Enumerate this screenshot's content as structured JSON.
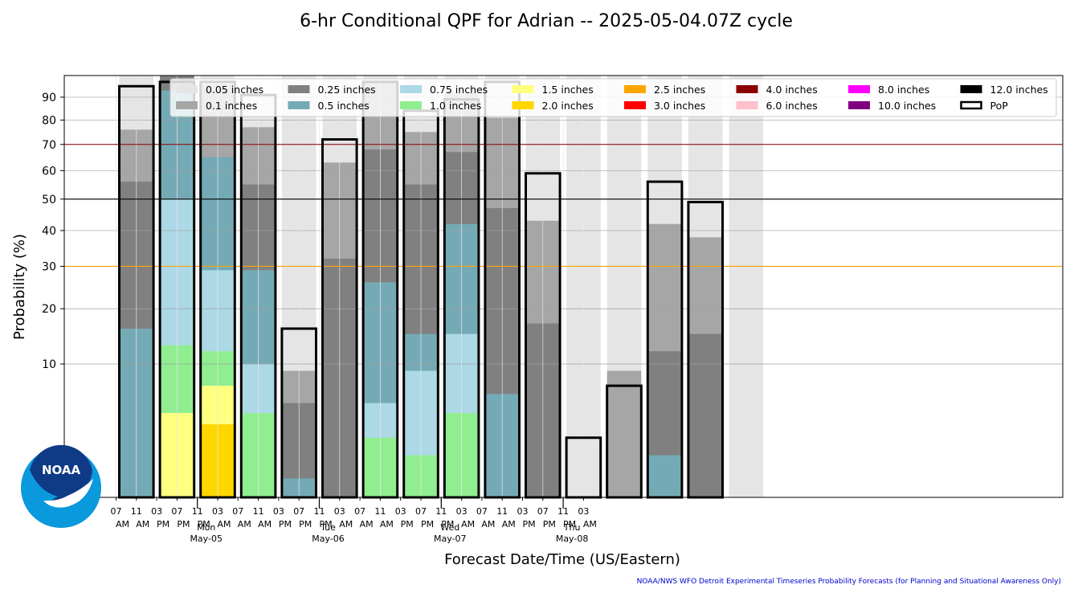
{
  "chart_data": {
    "type": "bar",
    "title": "6-hr Conditional QPF for Adrian -- 2025-05-04.07Z cycle",
    "xlabel": "Forecast Date/Time (US/Eastern)",
    "ylabel": "Probability (%)",
    "y_scale": "sqrt",
    "ylim": [
      0,
      100
    ],
    "yticks": [
      10,
      20,
      30,
      40,
      50,
      60,
      70,
      80,
      90
    ],
    "grid": true,
    "legend_position": "top",
    "reference_lines": [
      {
        "value": 70,
        "color": "#8b0000"
      },
      {
        "value": 50,
        "color": "#000000"
      },
      {
        "value": 30,
        "color": "#ffa500"
      }
    ],
    "tick_labels": [
      {
        "top": "07",
        "bottom": "AM"
      },
      {
        "top": "11",
        "bottom": "AM"
      },
      {
        "top": "03",
        "bottom": "PM"
      },
      {
        "top": "07",
        "bottom": "PM"
      },
      {
        "top": "11",
        "bottom": "PM"
      },
      {
        "top": "03",
        "bottom": "AM"
      },
      {
        "top": "07",
        "bottom": "AM"
      },
      {
        "top": "11",
        "bottom": "AM"
      },
      {
        "top": "03",
        "bottom": "PM"
      },
      {
        "top": "07",
        "bottom": "PM"
      },
      {
        "top": "11",
        "bottom": "PM"
      },
      {
        "top": "03",
        "bottom": "AM"
      },
      {
        "top": "07",
        "bottom": "AM"
      },
      {
        "top": "11",
        "bottom": "AM"
      },
      {
        "top": "03",
        "bottom": "PM"
      },
      {
        "top": "07",
        "bottom": "PM"
      },
      {
        "top": "11",
        "bottom": "PM"
      },
      {
        "top": "03",
        "bottom": "AM"
      },
      {
        "top": "07",
        "bottom": "AM"
      },
      {
        "top": "11",
        "bottom": "AM"
      },
      {
        "top": "03",
        "bottom": "PM"
      },
      {
        "top": "07",
        "bottom": "PM"
      },
      {
        "top": "11",
        "bottom": "PM"
      },
      {
        "top": "03",
        "bottom": "AM"
      }
    ],
    "day_labels": [
      {
        "tick_index": 4,
        "day": "Mon",
        "date": "May-05"
      },
      {
        "tick_index": 10,
        "day": "Tue",
        "date": "May-06"
      },
      {
        "tick_index": 16,
        "day": "Wed",
        "date": "May-07"
      },
      {
        "tick_index": 22,
        "day": "Thu",
        "date": "May-08"
      }
    ],
    "series": [
      {
        "name": "0.05 inches",
        "color": "#e5e5e5",
        "values": [
          100,
          100,
          100,
          91,
          100,
          100,
          100,
          100,
          100,
          100,
          100,
          100,
          100,
          100,
          100,
          100
        ]
      },
      {
        "name": "0.1 inches",
        "color": "#a6a6a6",
        "values": [
          76,
          100,
          96,
          77,
          9,
          63,
          97,
          75,
          92,
          81,
          43,
          0,
          9,
          42,
          38,
          0
        ]
      },
      {
        "name": "0.25 inches",
        "color": "#808080",
        "values": [
          56,
          100,
          65,
          55,
          5,
          32,
          68,
          55,
          67,
          47,
          17,
          0,
          0,
          12,
          15,
          0
        ]
      },
      {
        "name": "0.5 inches",
        "color": "#74aab5",
        "values": [
          16,
          93,
          65,
          29,
          0.2,
          0,
          26,
          15,
          42,
          6,
          0,
          0,
          0,
          1,
          0,
          0
        ]
      },
      {
        "name": "0.75 inches",
        "color": "#add8e6",
        "values": [
          0,
          50,
          29,
          10,
          0,
          0,
          5,
          9,
          15,
          0,
          0,
          0,
          0,
          0,
          0,
          0
        ]
      },
      {
        "name": "1.0 inches",
        "color": "#90ee90",
        "values": [
          0,
          13,
          12,
          4,
          0,
          0,
          2,
          1,
          4,
          0,
          0,
          0,
          0,
          0,
          0,
          0
        ]
      },
      {
        "name": "1.5 inches",
        "color": "#ffff80",
        "values": [
          0,
          4,
          7,
          0,
          0,
          0,
          0,
          0,
          0,
          0,
          0,
          0,
          0,
          0,
          0,
          0
        ]
      },
      {
        "name": "2.0 inches",
        "color": "#ffd700",
        "values": [
          0,
          0,
          3,
          0,
          0,
          0,
          0,
          0,
          0,
          0,
          0,
          0,
          0,
          0,
          0,
          0
        ]
      },
      {
        "name": "2.5 inches",
        "color": "#ffa500",
        "values": [
          0,
          0,
          0,
          0,
          0,
          0,
          0,
          0,
          0,
          0,
          0,
          0,
          0,
          0,
          0,
          0
        ]
      },
      {
        "name": "3.0 inches",
        "color": "#ff0000",
        "values": [
          0,
          0,
          0,
          0,
          0,
          0,
          0,
          0,
          0,
          0,
          0,
          0,
          0,
          0,
          0,
          0
        ]
      },
      {
        "name": "4.0 inches",
        "color": "#8b0000",
        "values": [
          0,
          0,
          0,
          0,
          0,
          0,
          0,
          0,
          0,
          0,
          0,
          0,
          0,
          0,
          0,
          0
        ]
      },
      {
        "name": "6.0 inches",
        "color": "#ffc0cb",
        "values": [
          0,
          0,
          0,
          0,
          0,
          0,
          0,
          0,
          0,
          0,
          0,
          0,
          0,
          0,
          0,
          0
        ]
      },
      {
        "name": "8.0 inches",
        "color": "#ff00ff",
        "values": [
          0,
          0,
          0,
          0,
          0,
          0,
          0,
          0,
          0,
          0,
          0,
          0,
          0,
          0,
          0,
          0
        ]
      },
      {
        "name": "10.0 inches",
        "color": "#800080",
        "values": [
          0,
          0,
          0,
          0,
          0,
          0,
          0,
          0,
          0,
          0,
          0,
          0,
          0,
          0,
          0,
          0
        ]
      },
      {
        "name": "12.0 inches",
        "color": "#000000",
        "values": [
          0,
          0,
          0,
          0,
          0,
          0,
          0,
          0,
          0,
          0,
          0,
          0,
          0,
          0,
          0,
          0
        ]
      }
    ],
    "pop": {
      "name": "PoP",
      "values": [
        95,
        97,
        97,
        91,
        16,
        72,
        97,
        84,
        89,
        97,
        59,
        2,
        7,
        56,
        49,
        0
      ]
    },
    "credit": "NOAA/NWS WFO Detroit Experimental Timeseries Probability Forecasts (for Planning and Situational Awareness Only)",
    "logo_text": "NOAA"
  }
}
